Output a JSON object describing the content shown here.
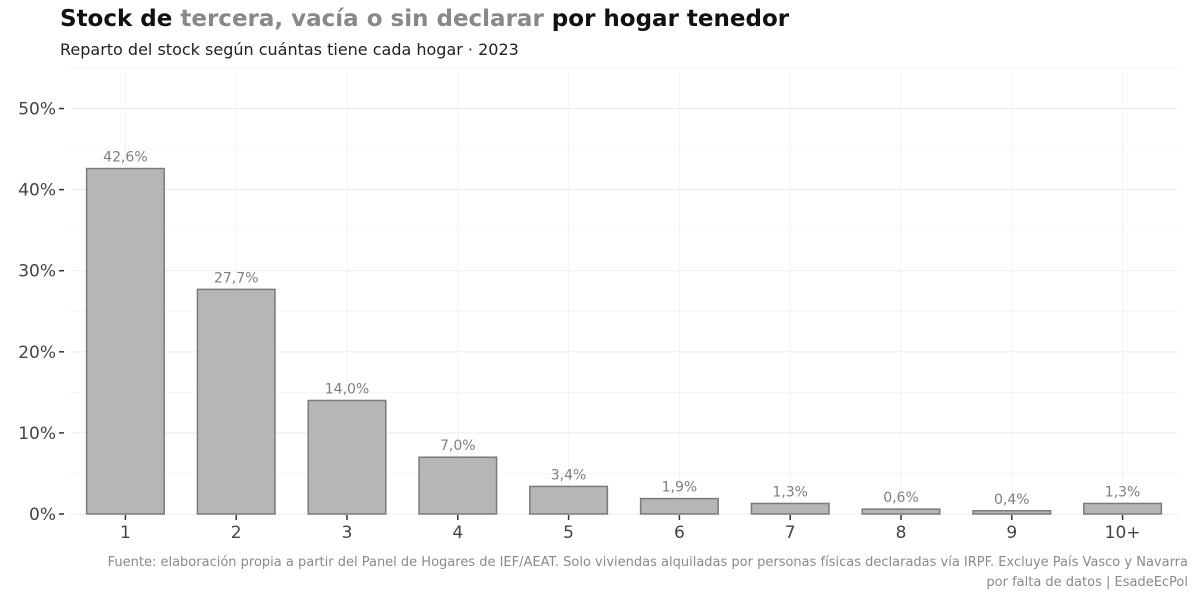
{
  "title": {
    "part1": "Stock de ",
    "highlight": "tercera, vacía o sin declarar",
    "part2": " por hogar tenedor"
  },
  "subtitle": "Reparto del stock según cuántas tiene cada hogar · 2023",
  "caption": {
    "line1": "Fuente: elaboración propia a partir del Panel de Hogares de IEF/AEAT. Solo viviendas alquiladas por personas físicas declaradas vía IRPF. Excluye País Vasco y Navarra",
    "line2": "por falta de datos | EsadeEcPol"
  },
  "colors": {
    "bar": "#b6b6b6",
    "bar_stroke": "#7a7a7a",
    "label": "#7f7f7f",
    "highlight": "#888888"
  },
  "chart_data": {
    "type": "bar",
    "categories": [
      "1",
      "2",
      "3",
      "4",
      "5",
      "6",
      "7",
      "8",
      "9",
      "10+"
    ],
    "values": [
      42.6,
      27.7,
      14.0,
      7.0,
      3.4,
      1.9,
      1.3,
      0.6,
      0.4,
      1.3
    ],
    "value_labels": [
      "42,6%",
      "27,7%",
      "14,0%",
      "7,0%",
      "3,4%",
      "1,9%",
      "1,3%",
      "0,6%",
      "0,4%",
      "1,3%"
    ],
    "y_ticks": [
      0,
      10,
      20,
      30,
      40,
      50
    ],
    "y_tick_labels": [
      "0%",
      "10%",
      "20%",
      "30%",
      "40%",
      "50%"
    ],
    "ylim": [
      0,
      55
    ],
    "grid": true,
    "xlabel": "",
    "ylabel": ""
  }
}
